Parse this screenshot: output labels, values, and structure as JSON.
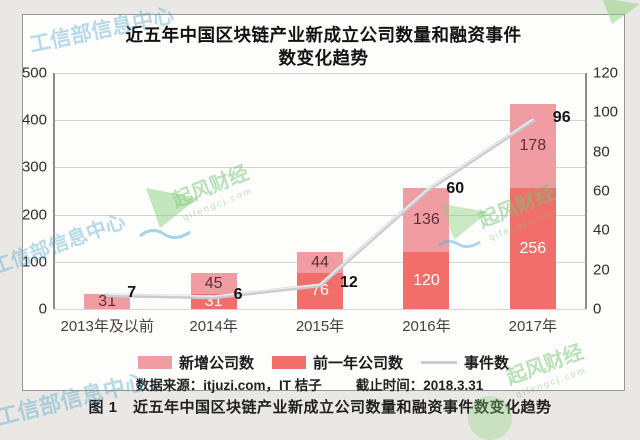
{
  "title": {
    "line1": "近五年中国区块链产业新成立公司数量和融资事件",
    "line2": "数变化趋势"
  },
  "chart_data": {
    "type": "bar",
    "subtype": "stacked-bar-with-line",
    "title": "近五年中国区块链产业新成立公司数量和融资事件数变化趋势",
    "categories": [
      "2013年及以前",
      "2014年",
      "2015年",
      "2016年",
      "2017年"
    ],
    "series": [
      {
        "name": "新增公司数",
        "type": "bar",
        "stack": "top",
        "color": "#f09ca3",
        "label_color": "#5f2f37",
        "values": [
          31,
          45,
          44,
          136,
          178
        ]
      },
      {
        "name": "前一年公司数",
        "type": "bar",
        "stack": "bottom",
        "color": "#f26e6b",
        "label_color": "#ffffff",
        "values": [
          0,
          31,
          76,
          120,
          256
        ]
      },
      {
        "name": "事件数",
        "type": "line",
        "axis": "right",
        "color": "#c9cbcf",
        "label_color": "#141414",
        "values": [
          7,
          6,
          12,
          60,
          96
        ]
      }
    ],
    "left_axis": {
      "min": 0,
      "max": 500,
      "step": 100,
      "ticks": [
        "500",
        "400",
        "300",
        "200",
        "100",
        "0"
      ]
    },
    "right_axis": {
      "min": 0,
      "max": 120,
      "step": 20,
      "ticks": [
        "120",
        "100",
        "80",
        "60",
        "40",
        "20",
        "0"
      ]
    },
    "grid": true,
    "legend_position": "bottom"
  },
  "source": {
    "data_source": "数据来源：itjuzi.com，IT 桔子",
    "cutoff": "截止时间：2018.3.31"
  },
  "caption": "图 1　近五年中国区块链产业新成立公司数量和融资事件数变化趋势",
  "watermarks": {
    "ministry": "工信部信息中心",
    "brand": "起风财经",
    "brand_sub": "qifengcj.com"
  }
}
